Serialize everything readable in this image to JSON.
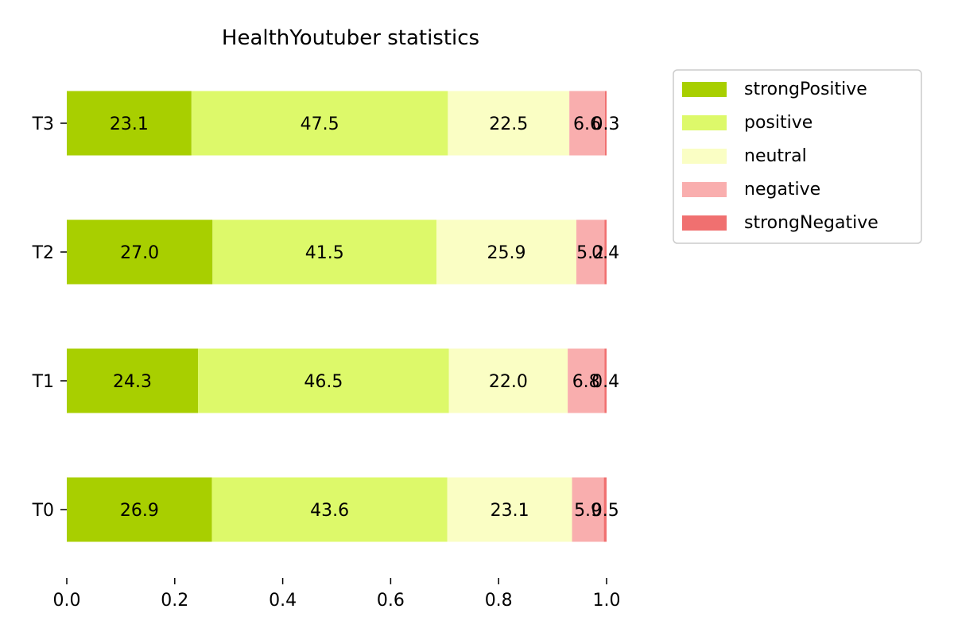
{
  "chart_data": {
    "type": "bar",
    "orientation": "horizontal",
    "stacked": true,
    "title": "HealthYoutuber statistics",
    "categories": [
      "T0",
      "T1",
      "T2",
      "T3"
    ],
    "series": [
      {
        "name": "strongPositive",
        "color": "#a8cf00",
        "values": [
          0.269,
          0.243,
          0.27,
          0.231
        ],
        "labels": [
          "26.9",
          "24.3",
          "27.0",
          "23.1"
        ]
      },
      {
        "name": "positive",
        "color": "#ddf96a",
        "values": [
          0.436,
          0.465,
          0.415,
          0.475
        ],
        "labels": [
          "43.6",
          "46.5",
          "41.5",
          "47.5"
        ]
      },
      {
        "name": "neutral",
        "color": "#fafec4",
        "values": [
          0.231,
          0.22,
          0.259,
          0.225
        ],
        "labels": [
          "23.1",
          "22.0",
          "25.9",
          "22.5"
        ]
      },
      {
        "name": "negative",
        "color": "#f9aeae",
        "values": [
          0.059,
          0.068,
          0.052,
          0.066
        ],
        "labels": [
          "5.9",
          "6.8",
          "5.2",
          "6.6"
        ]
      },
      {
        "name": "strongNegative",
        "color": "#f07070",
        "values": [
          0.005,
          0.004,
          0.004,
          0.003
        ],
        "labels": [
          "0.5",
          "0.4",
          "0.4",
          "0.3"
        ]
      }
    ],
    "x_ticks": [
      "0.0",
      "0.2",
      "0.4",
      "0.6",
      "0.8",
      "1.0"
    ],
    "xlim": [
      0,
      1
    ],
    "grid": false,
    "legend_position": "upper-right-outside"
  }
}
